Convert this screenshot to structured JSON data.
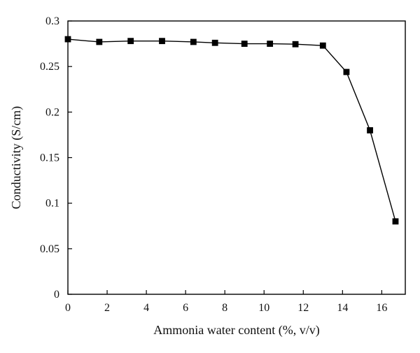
{
  "chart_data": {
    "type": "line",
    "xlabel": "Ammonia water content (%, v/v)",
    "ylabel": "Conductivity (S/cm)",
    "xlim": [
      0,
      17.2
    ],
    "ylim": [
      0,
      0.3
    ],
    "x_ticks": [
      0,
      2,
      4,
      6,
      8,
      10,
      12,
      14,
      16
    ],
    "y_ticks": [
      0,
      0.05,
      0.1,
      0.15,
      0.2,
      0.25,
      0.3
    ],
    "x_tick_labels": [
      "0",
      "2",
      "4",
      "6",
      "8",
      "10",
      "12",
      "14",
      "16"
    ],
    "y_tick_labels": [
      "0",
      "0.05",
      "0.1",
      "0.15",
      "0.2",
      "0.25",
      "0.3"
    ],
    "grid": false,
    "legend": "none",
    "series": [
      {
        "marker": "square",
        "color": "#000000",
        "x": [
          0,
          1.6,
          3.2,
          4.8,
          6.4,
          7.5,
          9.0,
          10.3,
          11.6,
          13.0,
          14.2,
          15.4,
          16.7
        ],
        "y": [
          0.28,
          0.277,
          0.278,
          0.278,
          0.277,
          0.276,
          0.275,
          0.275,
          0.2745,
          0.273,
          0.244,
          0.18,
          0.08
        ]
      }
    ]
  }
}
